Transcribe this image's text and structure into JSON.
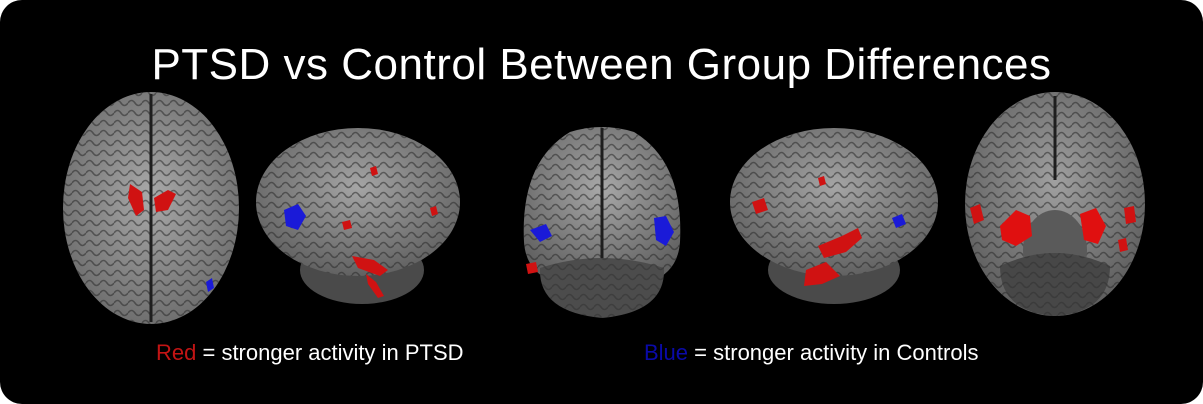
{
  "title": "PTSD vs Control Between Group Differences",
  "legend": {
    "red_key": "Red",
    "red_text": "= stronger activity in PTSD",
    "blue_key": "Blue",
    "blue_text": "= stronger activity in Controls"
  },
  "colors": {
    "background": "#000000",
    "ptsd_activity": "#e01010",
    "control_activity": "#1010d8",
    "red_key_text": "#c21414",
    "blue_key_text": "#0a0aa8"
  }
}
